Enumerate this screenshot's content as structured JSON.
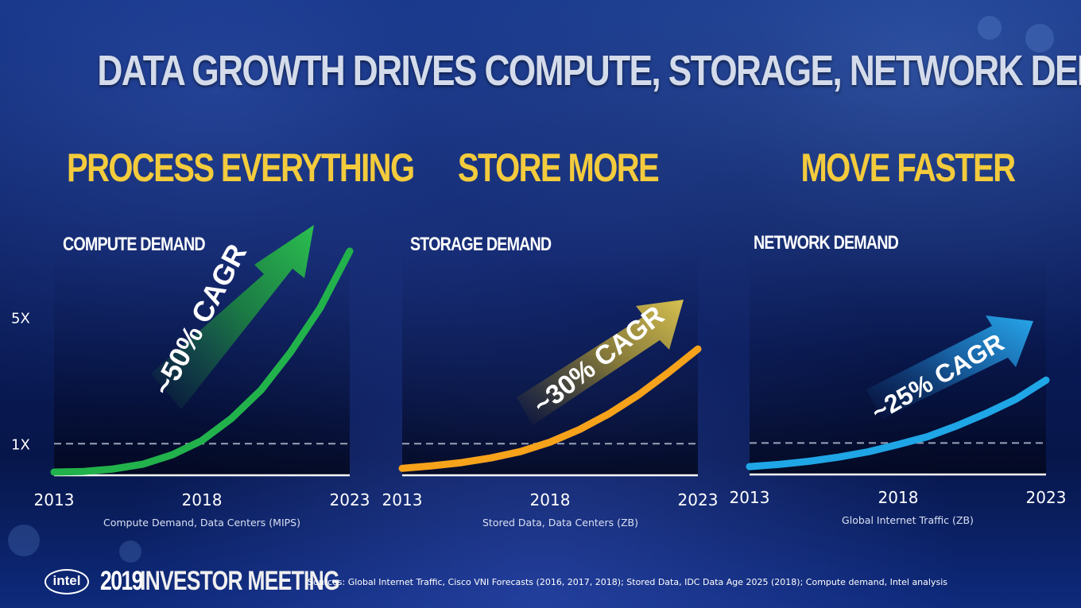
{
  "title": "DATA GROWTH DRIVES COMPUTE, STORAGE, NETWORK DEMAND",
  "footer": {
    "logo_text": "intel",
    "event_year": "2019",
    "event_name": "INVESTOR MEETING",
    "sources": "Sources: Global Internet Traffic, Cisco VNI Forecasts (2016, 2017, 2018); Stored Data, IDC Data Age 2025 (2018); Compute demand, Intel analysis"
  },
  "colors": {
    "title": "#d4dbea",
    "section_title": "#f3cb3c",
    "compute": "#22b24c",
    "storage": "#f7a21b",
    "network": "#1fa6e6"
  },
  "chart_data": [
    {
      "type": "line",
      "section_title": "PROCESS EVERYTHING",
      "label": "COMPUTE DEMAND",
      "caption": "Compute Demand,  Data Centers (MIPS)",
      "annotation": "~50% CAGR",
      "xlabel": "",
      "ylabel": "",
      "x_ticks": [
        "2013",
        "2018",
        "2023"
      ],
      "y_ticks": [
        {
          "label": "1X",
          "value": 1
        },
        {
          "label": "5X",
          "value": 5
        }
      ],
      "reference_line": 1,
      "xlim": [
        2013,
        2023
      ],
      "ylim": [
        0,
        7.2
      ],
      "series": [
        {
          "color": "#22b24c",
          "x": [
            2013,
            2014,
            2015,
            2016,
            2017,
            2018,
            2019,
            2020,
            2021,
            2022,
            2023
          ],
          "y": [
            0.1,
            0.12,
            0.2,
            0.35,
            0.65,
            1.1,
            1.8,
            2.7,
            3.9,
            5.3,
            7.1
          ]
        }
      ]
    },
    {
      "type": "line",
      "section_title": "STORE MORE",
      "label": "STORAGE DEMAND",
      "caption": "Stored Data, Data Centers (ZB)",
      "annotation": "~30% CAGR",
      "xlabel": "",
      "ylabel": "",
      "x_ticks": [
        "2013",
        "2018",
        "2023"
      ],
      "reference_line": 1,
      "xlim": [
        2013,
        2023
      ],
      "ylim": [
        0,
        7.2
      ],
      "series": [
        {
          "color": "#f7a21b",
          "x": [
            2013,
            2014,
            2015,
            2016,
            2017,
            2018,
            2019,
            2020,
            2021,
            2022,
            2023
          ],
          "y": [
            0.22,
            0.3,
            0.4,
            0.55,
            0.75,
            1.05,
            1.45,
            1.95,
            2.55,
            3.25,
            4.0
          ]
        }
      ]
    },
    {
      "type": "line",
      "section_title": "MOVE FASTER",
      "label": "NETWORK DEMAND",
      "caption": "Global Internet Traffic (ZB)",
      "annotation": "~25% CAGR",
      "xlabel": "",
      "ylabel": "",
      "x_ticks": [
        "2013",
        "2018",
        "2023"
      ],
      "reference_line": 1,
      "xlim": [
        2013,
        2023
      ],
      "ylim": [
        0,
        7.2
      ],
      "series": [
        {
          "color": "#1fa6e6",
          "x": [
            2013,
            2014,
            2015,
            2016,
            2017,
            2018,
            2019,
            2020,
            2021,
            2022,
            2023
          ],
          "y": [
            0.25,
            0.32,
            0.42,
            0.55,
            0.72,
            0.95,
            1.2,
            1.55,
            1.95,
            2.4,
            3.0
          ]
        }
      ]
    }
  ]
}
